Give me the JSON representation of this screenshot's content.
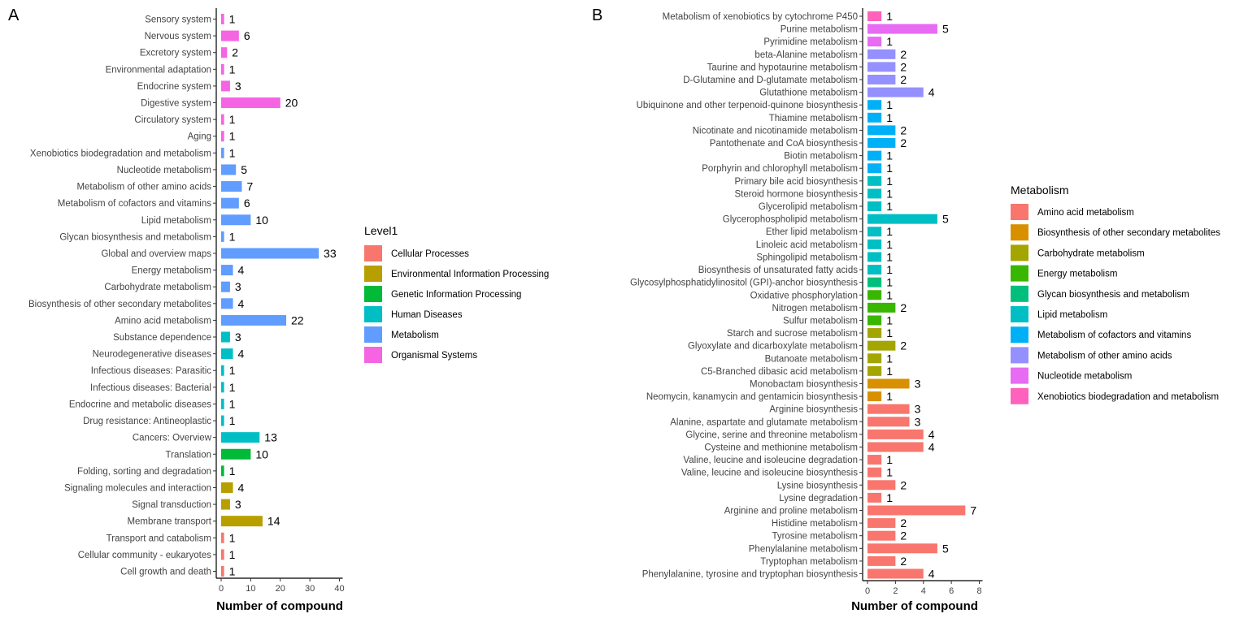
{
  "chart_data": [
    {
      "panel": "A",
      "type": "bar",
      "orientation": "horizontal",
      "xlabel": "Number of compound",
      "xlim": [
        0,
        40
      ],
      "xticks": [
        0,
        10,
        20,
        30,
        40
      ],
      "legend_title": "Level1",
      "legend": [
        {
          "name": "Cellular Processes",
          "color": "#F8766D"
        },
        {
          "name": "Environmental Information Processing",
          "color": "#B79F00"
        },
        {
          "name": "Genetic Information Processing",
          "color": "#00BA38"
        },
        {
          "name": "Human Diseases",
          "color": "#00BFC4"
        },
        {
          "name": "Metabolism",
          "color": "#619CFF"
        },
        {
          "name": "Organismal Systems",
          "color": "#F564E3"
        }
      ],
      "bars": [
        {
          "category": "Sensory system",
          "value": 1,
          "group": "Organismal Systems"
        },
        {
          "category": "Nervous system",
          "value": 6,
          "group": "Organismal Systems"
        },
        {
          "category": "Excretory system",
          "value": 2,
          "group": "Organismal Systems"
        },
        {
          "category": "Environmental adaptation",
          "value": 1,
          "group": "Organismal Systems"
        },
        {
          "category": "Endocrine system",
          "value": 3,
          "group": "Organismal Systems"
        },
        {
          "category": "Digestive system",
          "value": 20,
          "group": "Organismal Systems"
        },
        {
          "category": "Circulatory system",
          "value": 1,
          "group": "Organismal Systems"
        },
        {
          "category": "Aging",
          "value": 1,
          "group": "Organismal Systems"
        },
        {
          "category": "Xenobiotics biodegradation and metabolism",
          "value": 1,
          "group": "Metabolism"
        },
        {
          "category": "Nucleotide metabolism",
          "value": 5,
          "group": "Metabolism"
        },
        {
          "category": "Metabolism of other amino acids",
          "value": 7,
          "group": "Metabolism"
        },
        {
          "category": "Metabolism of cofactors and vitamins",
          "value": 6,
          "group": "Metabolism"
        },
        {
          "category": "Lipid metabolism",
          "value": 10,
          "group": "Metabolism"
        },
        {
          "category": "Glycan biosynthesis and metabolism",
          "value": 1,
          "group": "Metabolism"
        },
        {
          "category": "Global and overview maps",
          "value": 33,
          "group": "Metabolism"
        },
        {
          "category": "Energy metabolism",
          "value": 4,
          "group": "Metabolism"
        },
        {
          "category": "Carbohydrate metabolism",
          "value": 3,
          "group": "Metabolism"
        },
        {
          "category": "Biosynthesis of other secondary metabolites",
          "value": 4,
          "group": "Metabolism"
        },
        {
          "category": "Amino acid metabolism",
          "value": 22,
          "group": "Metabolism"
        },
        {
          "category": "Substance dependence",
          "value": 3,
          "group": "Human Diseases"
        },
        {
          "category": "Neurodegenerative diseases",
          "value": 4,
          "group": "Human Diseases"
        },
        {
          "category": "Infectious diseases: Parasitic",
          "value": 1,
          "group": "Human Diseases"
        },
        {
          "category": "Infectious diseases: Bacterial",
          "value": 1,
          "group": "Human Diseases"
        },
        {
          "category": "Endocrine and metabolic diseases",
          "value": 1,
          "group": "Human Diseases"
        },
        {
          "category": "Drug resistance: Antineoplastic",
          "value": 1,
          "group": "Human Diseases"
        },
        {
          "category": "Cancers: Overview",
          "value": 13,
          "group": "Human Diseases"
        },
        {
          "category": "Translation",
          "value": 10,
          "group": "Genetic Information Processing"
        },
        {
          "category": "Folding, sorting and degradation",
          "value": 1,
          "group": "Genetic Information Processing"
        },
        {
          "category": "Signaling molecules and interaction",
          "value": 4,
          "group": "Environmental Information Processing"
        },
        {
          "category": "Signal transduction",
          "value": 3,
          "group": "Environmental Information Processing"
        },
        {
          "category": "Membrane transport",
          "value": 14,
          "group": "Environmental Information Processing"
        },
        {
          "category": "Transport and catabolism",
          "value": 1,
          "group": "Cellular Processes"
        },
        {
          "category": "Cellular community - eukaryotes",
          "value": 1,
          "group": "Cellular Processes"
        },
        {
          "category": "Cell growth and death",
          "value": 1,
          "group": "Cellular Processes"
        }
      ]
    },
    {
      "panel": "B",
      "type": "bar",
      "orientation": "horizontal",
      "xlabel": "Number of compound",
      "xlim": [
        0,
        8
      ],
      "xticks": [
        0,
        2,
        4,
        6,
        8
      ],
      "legend_title": "Metabolism",
      "legend": [
        {
          "name": "Amino acid metabolism",
          "color": "#F8766D"
        },
        {
          "name": "Biosynthesis of other secondary metabolites",
          "color": "#D89000"
        },
        {
          "name": "Carbohydrate metabolism",
          "color": "#A3A500"
        },
        {
          "name": "Energy metabolism",
          "color": "#39B600"
        },
        {
          "name": "Glycan biosynthesis and metabolism",
          "color": "#00BF7D"
        },
        {
          "name": "Lipid metabolism",
          "color": "#00BFC4"
        },
        {
          "name": "Metabolism of cofactors and vitamins",
          "color": "#00B0F6"
        },
        {
          "name": "Metabolism of other amino acids",
          "color": "#9590FF"
        },
        {
          "name": "Nucleotide metabolism",
          "color": "#E76BF3"
        },
        {
          "name": "Xenobiotics biodegradation and metabolism",
          "color": "#FF62BC"
        }
      ],
      "bars": [
        {
          "category": "Metabolism of xenobiotics by cytochrome P450",
          "value": 1,
          "group": "Xenobiotics biodegradation and metabolism"
        },
        {
          "category": "Purine metabolism",
          "value": 5,
          "group": "Nucleotide metabolism"
        },
        {
          "category": "Pyrimidine metabolism",
          "value": 1,
          "group": "Nucleotide metabolism"
        },
        {
          "category": "beta-Alanine metabolism",
          "value": 2,
          "group": "Metabolism of other amino acids"
        },
        {
          "category": "Taurine and hypotaurine metabolism",
          "value": 2,
          "group": "Metabolism of other amino acids"
        },
        {
          "category": "D-Glutamine and D-glutamate metabolism",
          "value": 2,
          "group": "Metabolism of other amino acids"
        },
        {
          "category": "Glutathione metabolism",
          "value": 4,
          "group": "Metabolism of other amino acids"
        },
        {
          "category": "Ubiquinone and other terpenoid-quinone biosynthesis",
          "value": 1,
          "group": "Metabolism of cofactors and vitamins"
        },
        {
          "category": "Thiamine metabolism",
          "value": 1,
          "group": "Metabolism of cofactors and vitamins"
        },
        {
          "category": "Nicotinate and nicotinamide metabolism",
          "value": 2,
          "group": "Metabolism of cofactors and vitamins"
        },
        {
          "category": "Pantothenate and CoA biosynthesis",
          "value": 2,
          "group": "Metabolism of cofactors and vitamins"
        },
        {
          "category": "Biotin metabolism",
          "value": 1,
          "group": "Metabolism of cofactors and vitamins"
        },
        {
          "category": "Porphyrin and chlorophyll metabolism",
          "value": 1,
          "group": "Metabolism of cofactors and vitamins"
        },
        {
          "category": "Primary bile acid biosynthesis",
          "value": 1,
          "group": "Lipid metabolism"
        },
        {
          "category": "Steroid hormone biosynthesis",
          "value": 1,
          "group": "Lipid metabolism"
        },
        {
          "category": "Glycerolipid metabolism",
          "value": 1,
          "group": "Lipid metabolism"
        },
        {
          "category": "Glycerophospholipid metabolism",
          "value": 5,
          "group": "Lipid metabolism"
        },
        {
          "category": "Ether lipid metabolism",
          "value": 1,
          "group": "Lipid metabolism"
        },
        {
          "category": "Linoleic acid metabolism",
          "value": 1,
          "group": "Lipid metabolism"
        },
        {
          "category": "Sphingolipid metabolism",
          "value": 1,
          "group": "Lipid metabolism"
        },
        {
          "category": "Biosynthesis of unsaturated fatty acids",
          "value": 1,
          "group": "Lipid metabolism"
        },
        {
          "category": "Glycosylphosphatidylinositol (GPI)-anchor biosynthesis",
          "value": 1,
          "group": "Glycan biosynthesis and metabolism"
        },
        {
          "category": "Oxidative phosphorylation",
          "value": 1,
          "group": "Energy metabolism"
        },
        {
          "category": "Nitrogen metabolism",
          "value": 2,
          "group": "Energy metabolism"
        },
        {
          "category": "Sulfur metabolism",
          "value": 1,
          "group": "Energy metabolism"
        },
        {
          "category": "Starch and sucrose metabolism",
          "value": 1,
          "group": "Carbohydrate metabolism"
        },
        {
          "category": "Glyoxylate and dicarboxylate metabolism",
          "value": 2,
          "group": "Carbohydrate metabolism"
        },
        {
          "category": "Butanoate metabolism",
          "value": 1,
          "group": "Carbohydrate metabolism"
        },
        {
          "category": "C5-Branched dibasic acid metabolism",
          "value": 1,
          "group": "Carbohydrate metabolism"
        },
        {
          "category": "Monobactam biosynthesis",
          "value": 3,
          "group": "Biosynthesis of other secondary metabolites"
        },
        {
          "category": "Neomycin, kanamycin and gentamicin biosynthesis",
          "value": 1,
          "group": "Biosynthesis of other secondary metabolites"
        },
        {
          "category": "Arginine biosynthesis",
          "value": 3,
          "group": "Amino acid metabolism"
        },
        {
          "category": "Alanine, aspartate and glutamate metabolism",
          "value": 3,
          "group": "Amino acid metabolism"
        },
        {
          "category": "Glycine, serine and threonine metabolism",
          "value": 4,
          "group": "Amino acid metabolism"
        },
        {
          "category": "Cysteine and methionine metabolism",
          "value": 4,
          "group": "Amino acid metabolism"
        },
        {
          "category": "Valine, leucine and isoleucine degradation",
          "value": 1,
          "group": "Amino acid metabolism"
        },
        {
          "category": "Valine, leucine and isoleucine biosynthesis",
          "value": 1,
          "group": "Amino acid metabolism"
        },
        {
          "category": "Lysine biosynthesis",
          "value": 2,
          "group": "Amino acid metabolism"
        },
        {
          "category": "Lysine degradation",
          "value": 1,
          "group": "Amino acid metabolism"
        },
        {
          "category": "Arginine and proline metabolism",
          "value": 7,
          "group": "Amino acid metabolism"
        },
        {
          "category": "Histidine metabolism",
          "value": 2,
          "group": "Amino acid metabolism"
        },
        {
          "category": "Tyrosine metabolism",
          "value": 2,
          "group": "Amino acid metabolism"
        },
        {
          "category": "Phenylalanine metabolism",
          "value": 5,
          "group": "Amino acid metabolism"
        },
        {
          "category": "Tryptophan metabolism",
          "value": 2,
          "group": "Amino acid metabolism"
        },
        {
          "category": "Phenylalanine, tyrosine and tryptophan biosynthesis",
          "value": 4,
          "group": "Amino acid metabolism"
        }
      ]
    }
  ]
}
